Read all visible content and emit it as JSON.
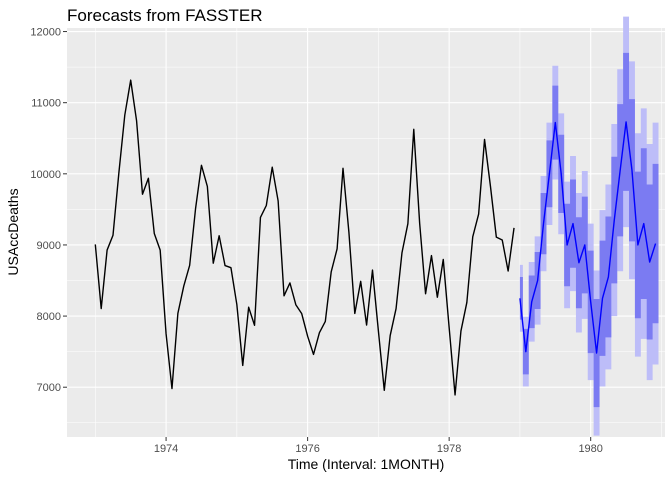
{
  "chart_data": {
    "type": "line",
    "title": "Forecasts from FASSTER",
    "xlabel": "Time (Interval: 1MONTH)",
    "ylabel": "USAccDeaths",
    "xlim": [
      1972.6,
      1981.05
    ],
    "ylim": [
      6300,
      12050
    ],
    "x_ticks": [
      1974,
      1976,
      1978,
      1980
    ],
    "y_ticks": [
      7000,
      8000,
      9000,
      10000,
      11000,
      12000
    ],
    "grid": true,
    "legend": "none",
    "colors": {
      "panel": "#ebebeb",
      "grid": "#ffffff",
      "history": "#000000",
      "forecast": "#0000ff",
      "band_80": "#7b7bf2",
      "band_95": "#bdbdf8"
    },
    "history": {
      "start": 1973.0,
      "step": 0.08333333,
      "values": [
        9007,
        8106,
        8928,
        9137,
        10017,
        10826,
        11317,
        10744,
        9713,
        9938,
        9161,
        8927,
        7750,
        6981,
        8038,
        8422,
        8714,
        9512,
        10120,
        9823,
        8743,
        9129,
        8710,
        8680,
        8162,
        7306,
        8124,
        7870,
        9387,
        9556,
        10093,
        9620,
        8285,
        8466,
        8160,
        8034,
        7717,
        7461,
        7767,
        7925,
        8623,
        8945,
        10078,
        9179,
        8037,
        8488,
        7874,
        8647,
        7792,
        6957,
        7726,
        8106,
        8890,
        9299,
        10625,
        9302,
        8314,
        8850,
        8265,
        8796,
        7836,
        6892,
        7791,
        8192,
        9115,
        9434,
        10484,
        9827,
        9110,
        9070,
        8633,
        9240
      ]
    },
    "forecast": {
      "start": 1979.0,
      "step": 0.08333333,
      "mean": [
        8250,
        7500,
        8200,
        8500,
        9300,
        10000,
        10720,
        10000,
        9000,
        9300,
        8750,
        9000,
        8200,
        7480,
        8250,
        8550,
        9350,
        10050,
        10730,
        10050,
        9000,
        9300,
        8760,
        9020
      ],
      "lo80": [
        7950,
        7180,
        7830,
        8100,
        8870,
        9530,
        10200,
        9450,
        8420,
        8680,
        8110,
        8320,
        7480,
        6720,
        7440,
        7700,
        8460,
        9120,
        9760,
        9050,
        7970,
        8240,
        7670,
        7900
      ],
      "hi80": [
        8550,
        7820,
        8570,
        8900,
        9730,
        10470,
        11240,
        10550,
        9580,
        9920,
        9390,
        9680,
        8920,
        8240,
        9060,
        9400,
        10240,
        10980,
        11700,
        11050,
        10030,
        10360,
        9850,
        10140
      ],
      "lo95": [
        7780,
        7010,
        7640,
        7880,
        8630,
        9280,
        9920,
        9150,
        8110,
        8350,
        7770,
        7960,
        7100,
        6320,
        7010,
        7250,
        8000,
        8630,
        9250,
        8520,
        7430,
        7680,
        7100,
        7320
      ],
      "hi95": [
        8720,
        7990,
        8760,
        9120,
        9970,
        10720,
        11520,
        10850,
        9890,
        10250,
        9730,
        10040,
        9300,
        8640,
        9490,
        9850,
        10700,
        11470,
        12210,
        11580,
        10570,
        10920,
        10420,
        10720
      ]
    }
  }
}
